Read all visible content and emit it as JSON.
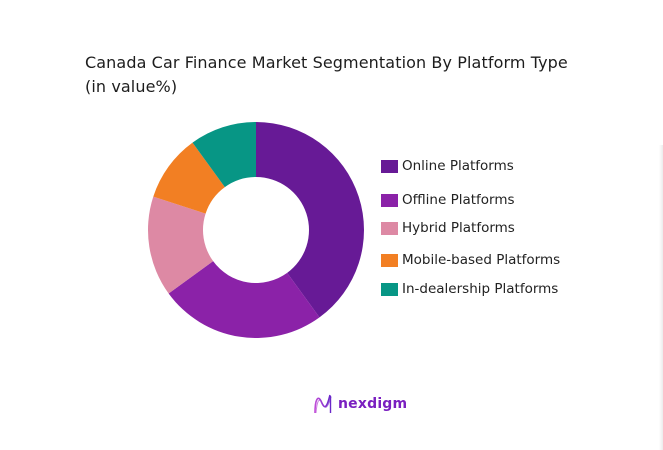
{
  "title": {
    "line1": "Canada Car Finance Market Segmentation By Platform Type",
    "line2": "(in value%)"
  },
  "legend": [
    {
      "label": "Online Platforms",
      "color": "#671a96"
    },
    {
      "label": "Offline Platforms",
      "color": "#8b22a8"
    },
    {
      "label": "Hybrid Platforms",
      "color": "#dd89a4"
    },
    {
      "label": "Mobile-based Platforms",
      "color": "#f27f23"
    },
    {
      "label": "In-dealership Platforms",
      "color": "#079685"
    }
  ],
  "logo": {
    "text": "nexdigm",
    "icon": "nexdigm-wave-icon"
  },
  "chart_data": {
    "type": "pie",
    "variant": "donut",
    "title": "Canada Car Finance Market Segmentation By Platform Type (in value%)",
    "categories": [
      "Online Platforms",
      "Offline Platforms",
      "Hybrid Platforms",
      "Mobile-based Platforms",
      "In-dealership Platforms"
    ],
    "values": [
      40,
      25,
      15,
      10,
      10
    ],
    "colors": [
      "#671a96",
      "#8b22a8",
      "#dd89a4",
      "#f27f23",
      "#079685"
    ],
    "start_angle": 0,
    "direction": "clockwise",
    "legend_position": "right",
    "data_labels": false
  }
}
